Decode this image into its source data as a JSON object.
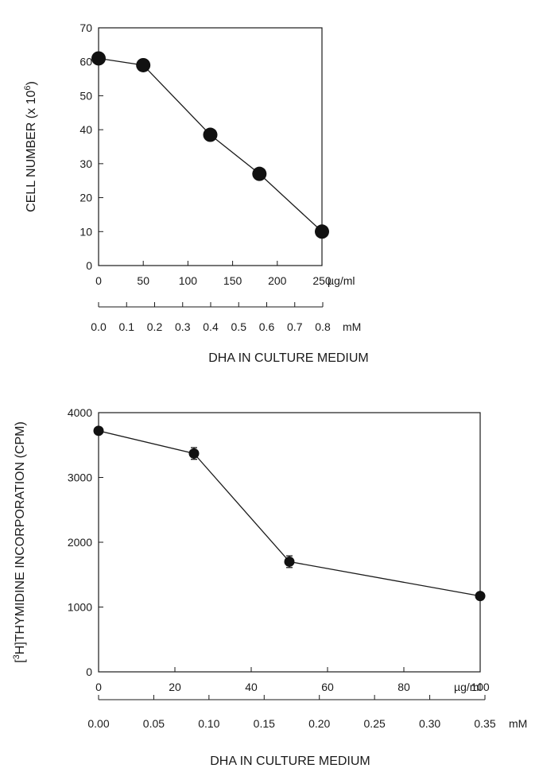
{
  "chart_data": [
    {
      "type": "line",
      "x": [
        0,
        50,
        125,
        180,
        250
      ],
      "series": [
        {
          "values": [
            61,
            59,
            38.5,
            27,
            10
          ]
        }
      ],
      "ylabel": "CELL NUMBER (x 10",
      "ylabel_sup": "6",
      "ylabel_end": ")",
      "xlabel": "DHA IN CULTURE MEDIUM",
      "xlim": [
        0,
        250
      ],
      "ylim": [
        0,
        70
      ],
      "xticks": [
        "0",
        "50",
        "100",
        "150",
        "200",
        "250"
      ],
      "yticks": [
        "0",
        "10",
        "20",
        "30",
        "40",
        "50",
        "60",
        "70"
      ],
      "x_unit": "µg/ml",
      "x2_unit": "mM",
      "x2_ticks": [
        "0.0",
        "0.1",
        "0.2",
        "0.3",
        "0.4",
        "0.5",
        "0.6",
        "0.7",
        "0.8"
      ],
      "x2_range": [
        0,
        0.8
      ],
      "grid": false,
      "marker_color": "#111111"
    },
    {
      "type": "line",
      "x": [
        0,
        25,
        50,
        100
      ],
      "series": [
        {
          "values": [
            3720,
            3370,
            1700,
            1170
          ],
          "errors": [
            40,
            90,
            90,
            30
          ]
        }
      ],
      "ylabel": "H]THYMIDINE INCORPORATION (CPM)",
      "ylabel_prefix": "[",
      "ylabel_sup": "3",
      "xlabel": "DHA IN CULTURE MEDIUM",
      "xlim": [
        0,
        100
      ],
      "ylim": [
        0,
        4000
      ],
      "xticks": [
        "0",
        "20",
        "40",
        "60",
        "80",
        "100"
      ],
      "yticks": [
        "0",
        "1000",
        "2000",
        "3000",
        "4000"
      ],
      "x_unit": "µg/ml",
      "x2_unit": "mM",
      "x2_ticks": [
        "0.00",
        "0.05",
        "0.10",
        "0.15",
        "0.20",
        "0.25",
        "0.30",
        "0.35"
      ],
      "x2_range": [
        0,
        0.35
      ],
      "grid": false,
      "marker_color": "#111111"
    }
  ]
}
